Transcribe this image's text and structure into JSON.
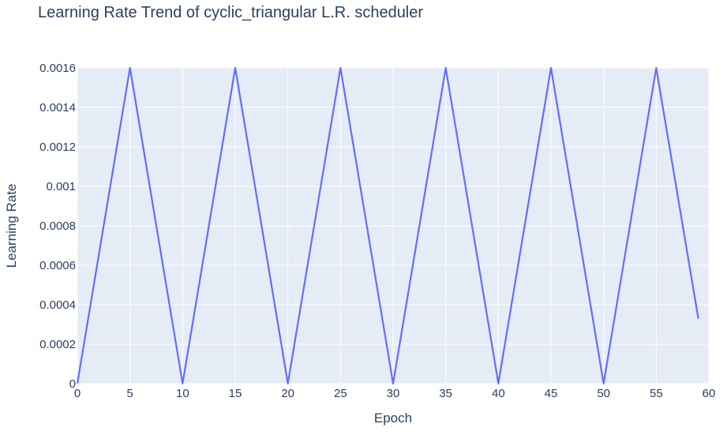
{
  "chart_data": {
    "type": "line",
    "title": "Learning Rate Trend of cyclic_triangular L.R. scheduler",
    "xlabel": "Epoch",
    "ylabel": "Learning Rate",
    "xlim": [
      0,
      60
    ],
    "ylim": [
      0,
      0.0016
    ],
    "grid": true,
    "x_ticks": [
      0,
      5,
      10,
      15,
      20,
      25,
      30,
      35,
      40,
      45,
      50,
      55,
      60
    ],
    "x_tick_labels": [
      "0",
      "5",
      "10",
      "15",
      "20",
      "25",
      "30",
      "35",
      "40",
      "45",
      "50",
      "55",
      "60"
    ],
    "y_ticks": [
      0,
      0.0002,
      0.0004,
      0.0006,
      0.0008,
      0.001,
      0.0012,
      0.0014,
      0.0016
    ],
    "y_tick_labels": [
      "0",
      "0.0002",
      "0.0004",
      "0.0006",
      "0.0008",
      "0.001",
      "0.0012",
      "0.0014",
      "0.0016"
    ],
    "colors": {
      "plot_bg": "#e5ecf6",
      "grid": "#ffffff",
      "line": "#636efa",
      "text": "#2a3f5f"
    },
    "series": [
      {
        "x": [
          0,
          5,
          10,
          15,
          20,
          25,
          30,
          35,
          40,
          45,
          50,
          55,
          59
        ],
        "values": [
          1e-06,
          0.0016,
          1e-06,
          0.0016,
          1e-06,
          0.0016,
          1e-06,
          0.0016,
          1e-06,
          0.0016,
          1e-06,
          0.0016,
          0.00033
        ]
      }
    ]
  }
}
